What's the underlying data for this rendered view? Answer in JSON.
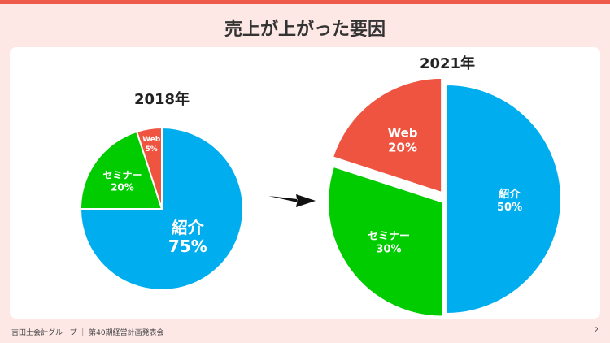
{
  "slide": {
    "title": "売上が上がった要因",
    "footer": "吉田土会計グループ ｜ 第40期経営計画発表会",
    "page_number": "2"
  },
  "colors": {
    "accent": "#ef5b4b",
    "background": "#fde8e6",
    "referral": "#00aeef",
    "seminar": "#00cc00",
    "web": "#ee5440"
  },
  "arrow": "right-arrow-icon",
  "chart_data": [
    {
      "type": "pie",
      "title": "2018年",
      "slices": [
        {
          "label": "紹介",
          "value": 75,
          "value_label": "75%",
          "color": "#00aeef"
        },
        {
          "label": "セミナー",
          "value": 20,
          "value_label": "20%",
          "color": "#00cc00"
        },
        {
          "label": "Web",
          "value": 5,
          "value_label": "5%",
          "color": "#ee5440"
        }
      ]
    },
    {
      "type": "pie",
      "title": "2021年",
      "slices": [
        {
          "label": "紹介",
          "value": 50,
          "value_label": "50%",
          "color": "#00aeef"
        },
        {
          "label": "セミナー",
          "value": 30,
          "value_label": "30%",
          "color": "#00cc00"
        },
        {
          "label": "Web",
          "value": 20,
          "value_label": "20%",
          "color": "#ee5440"
        }
      ]
    }
  ]
}
